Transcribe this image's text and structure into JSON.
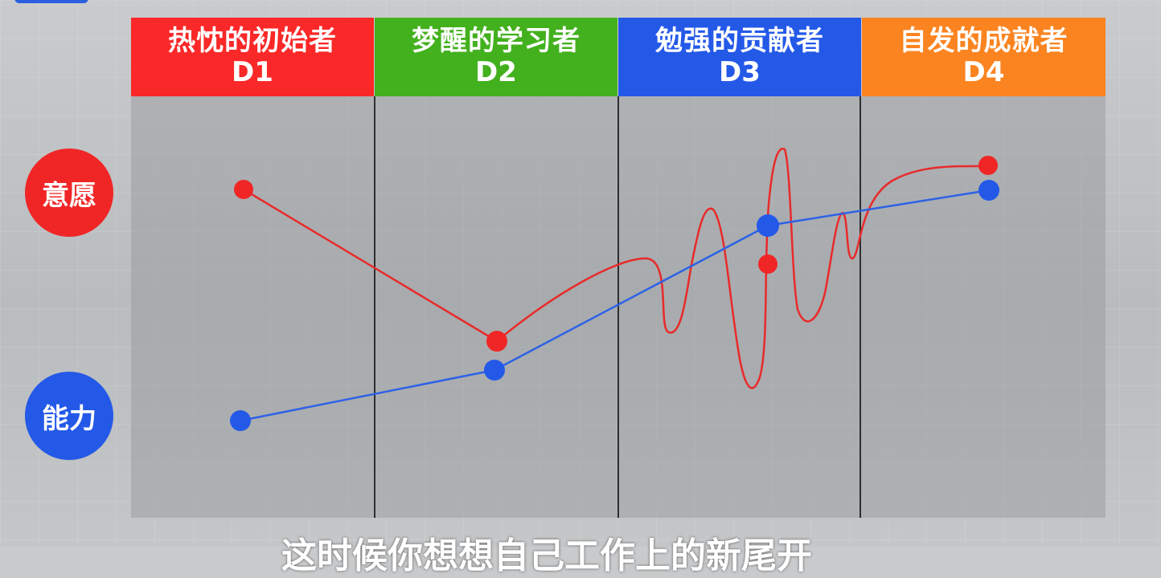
{
  "stages": [
    {
      "name": "热忱的初始者",
      "code": "D1",
      "color": "#fa2828"
    },
    {
      "name": "梦醒的学习者",
      "code": "D2",
      "color": "#43b01e"
    },
    {
      "name": "勉强的贡献者",
      "code": "D3",
      "color": "#2459e8"
    },
    {
      "name": "自发的成就者",
      "code": "D4",
      "color": "#fb8420"
    }
  ],
  "axes": {
    "willingness": {
      "label": "意愿",
      "color": "#f02626"
    },
    "ability": {
      "label": "能力",
      "color": "#2459e8"
    }
  },
  "subtitle": "这时候你想想自己工作上的新尾开"
}
